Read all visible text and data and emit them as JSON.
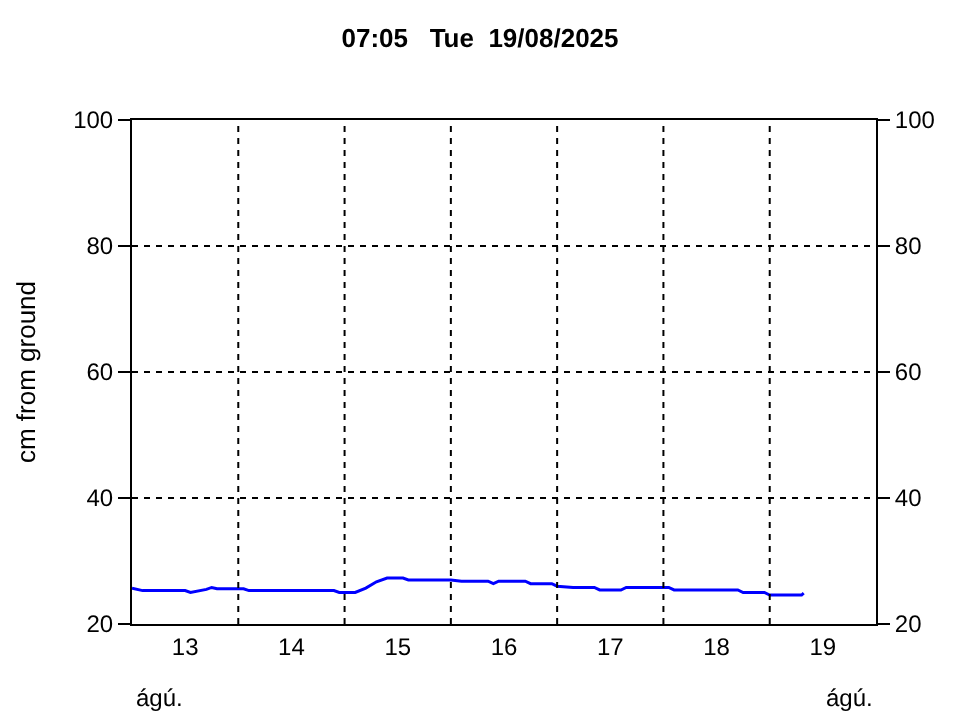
{
  "chart_data": {
    "type": "line",
    "title": "07:05   Tue  19/08/2025",
    "ylabel": "cm from ground",
    "series": [
      {
        "color": "#0000ff",
        "x": [
          12.5,
          12.6,
          13.0,
          13.05,
          13.2,
          13.25,
          13.3,
          13.55,
          13.6,
          14.4,
          14.45,
          14.6,
          14.7,
          14.8,
          14.9,
          15.05,
          15.1,
          15.5,
          15.6,
          15.85,
          15.9,
          15.95,
          16.2,
          16.25,
          16.45,
          16.5,
          16.65,
          16.85,
          16.9,
          17.1,
          17.15,
          17.55,
          17.6,
          18.2,
          18.25,
          18.45,
          18.5,
          18.8,
          18.82
        ],
        "values": [
          25.7,
          25.3,
          25.3,
          25.0,
          25.5,
          25.8,
          25.6,
          25.6,
          25.3,
          25.3,
          25.0,
          25.0,
          25.7,
          26.7,
          27.3,
          27.3,
          27.0,
          27.0,
          26.8,
          26.8,
          26.4,
          26.8,
          26.8,
          26.4,
          26.4,
          26.0,
          25.8,
          25.8,
          25.4,
          25.4,
          25.8,
          25.8,
          25.4,
          25.4,
          25.0,
          25.0,
          24.6,
          24.6,
          24.9
        ]
      }
    ],
    "xlim": [
      12.5,
      19.5
    ],
    "xticks": [
      13,
      14,
      15,
      16,
      17,
      18,
      19
    ],
    "ylim": [
      20,
      100
    ],
    "yticks": [
      20,
      40,
      60,
      80,
      100
    ],
    "y2lim": [
      20,
      100
    ],
    "y2ticks": [
      20,
      40,
      60,
      80,
      100
    ],
    "annotations": [
      "ágú.",
      "ágú."
    ],
    "grid": true,
    "legend": false,
    "line_style": "solid"
  }
}
